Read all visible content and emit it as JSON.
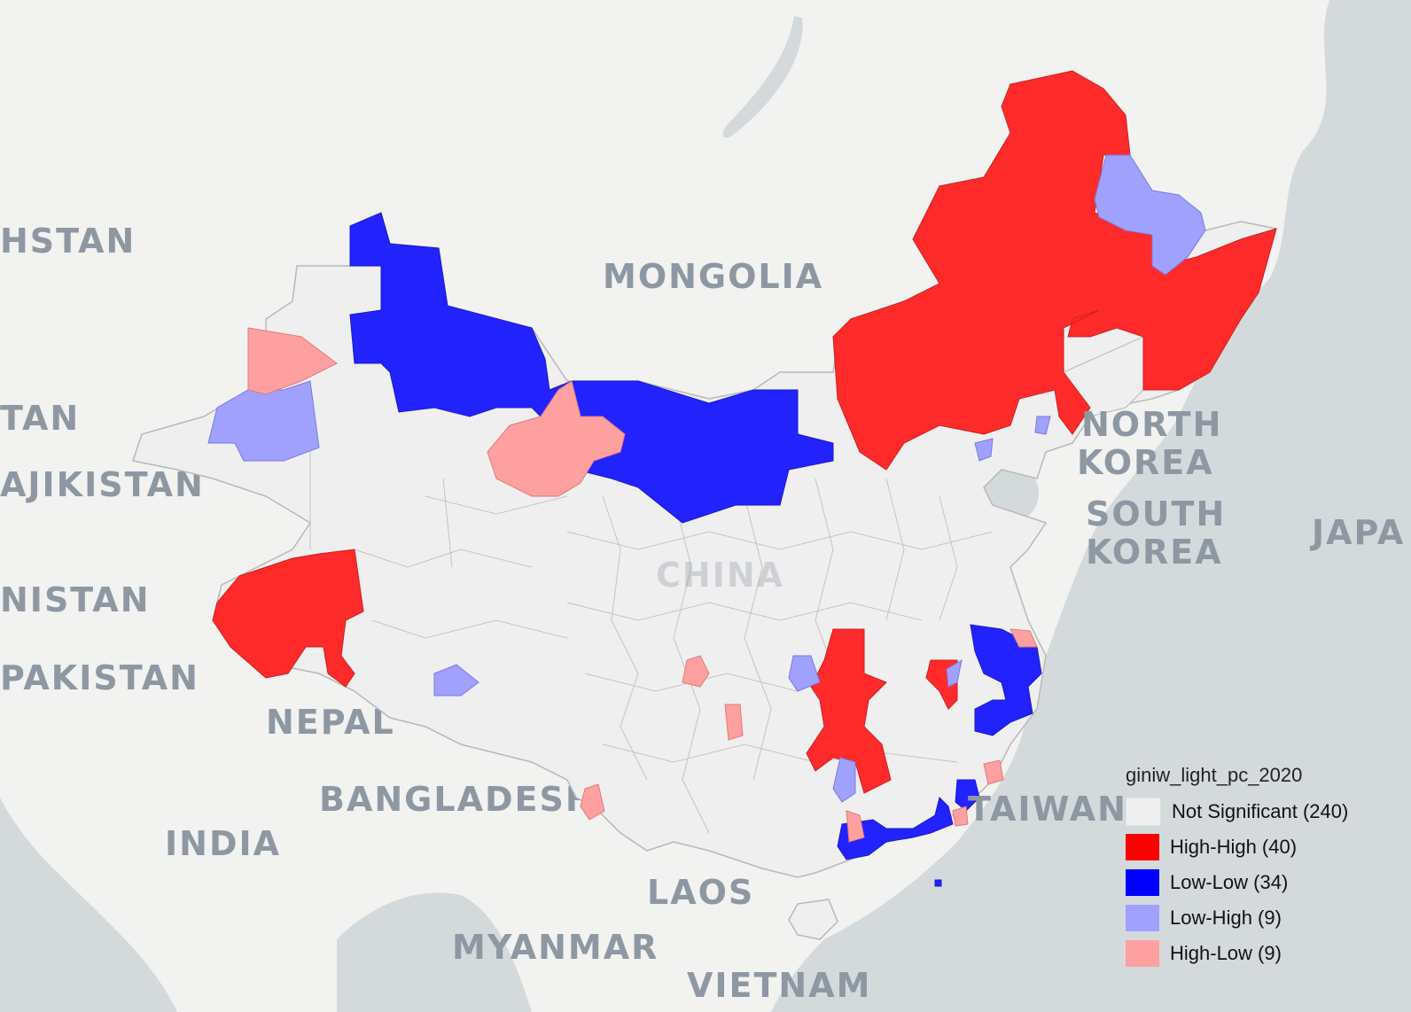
{
  "map": {
    "country_labels": {
      "hstan": "HSTAN",
      "mongolia": "MONGOLIA",
      "tan": "TAN",
      "tajikistan": "AJIKISTAN",
      "nistan": "NISTAN",
      "pakistan": "PAKISTAN",
      "nepal": "NEPAL",
      "bangladesh": "BANGLADESH",
      "india": "INDIA",
      "laos": "LAOS",
      "myanmar": "MYANMAR",
      "vietnam": "VIETNAM",
      "north_korea_1": "NORTH",
      "north_korea_2": "KOREA",
      "south_korea_1": "SOUTH",
      "south_korea_2": "KOREA",
      "japan": "JAPA",
      "taiwan": "TAIWAN",
      "china": "CHINA"
    },
    "colors": {
      "water": "#d4dadc",
      "land": "#f2f2f0",
      "not_significant": "#efefef",
      "high_high": "#ff2a2a",
      "low_low": "#2222ff",
      "low_high": "#a0a0ff",
      "high_low": "#ffa0a0",
      "border": "#b0b0b0"
    }
  },
  "legend": {
    "title": "giniw_light_pc_2020",
    "items": [
      {
        "label": "Not Significant (240)",
        "color": "#efefef"
      },
      {
        "label": "High-High (40)",
        "color": "#ff0000"
      },
      {
        "label": "Low-Low (34)",
        "color": "#0000ff"
      },
      {
        "label": "Low-High (9)",
        "color": "#a0a0ff"
      },
      {
        "label": "High-Low (9)",
        "color": "#ffa0a0"
      }
    ]
  }
}
